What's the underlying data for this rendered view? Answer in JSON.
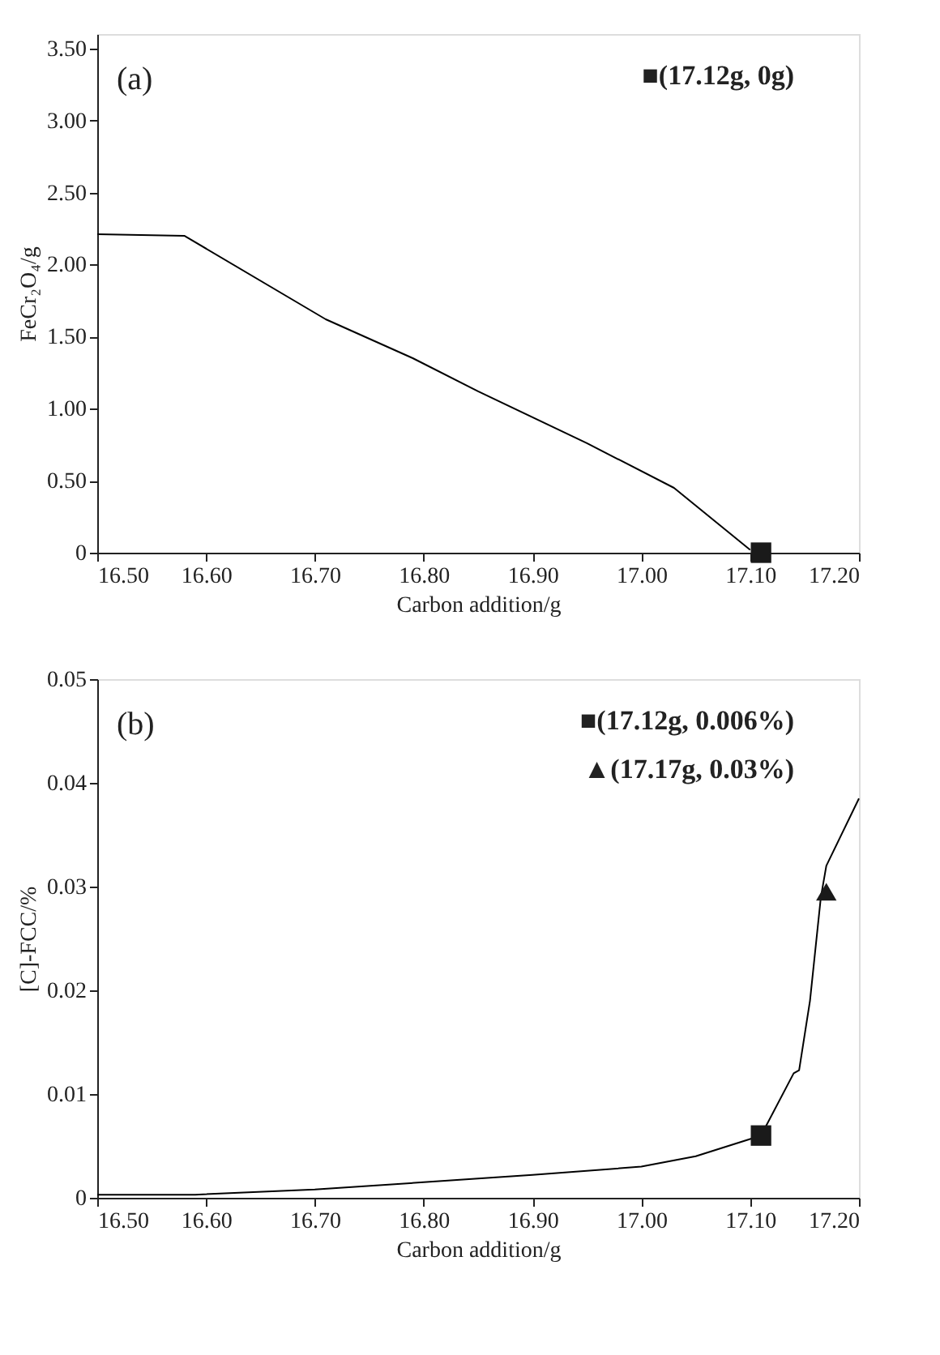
{
  "chart_data": [
    {
      "type": "line",
      "xlabel": "Carbon addition/g",
      "ylabel": "FeCr₂O₄/g",
      "xlim": [
        16.5,
        17.2
      ],
      "xticks": [
        {
          "value": 16.5,
          "label": "16.50"
        },
        {
          "value": 16.6,
          "label": "16.60"
        },
        {
          "value": 16.7,
          "label": "16.70"
        },
        {
          "value": 16.8,
          "label": "16.80"
        },
        {
          "value": 16.9,
          "label": "16.90"
        },
        {
          "value": 17.0,
          "label": "17.00"
        },
        {
          "value": 17.1,
          "label": "17.10"
        },
        {
          "value": 17.2,
          "label": "17.20"
        }
      ],
      "ylim": [
        0,
        3.6
      ],
      "yticks": [
        0,
        {
          "value": 0.5,
          "label": "0.50"
        },
        {
          "value": 1.0,
          "label": "1.00"
        },
        {
          "value": 1.5,
          "label": "1.50"
        },
        {
          "value": 2.0,
          "label": "2.00"
        },
        {
          "value": 2.5,
          "label": "2.50"
        },
        {
          "value": 3.0,
          "label": "3.00"
        },
        {
          "value": 3.5,
          "label": "3.50"
        }
      ],
      "grid": false,
      "annotations": [
        "(a)",
        "■(17.12g, 0g)"
      ],
      "series": [
        {
          "color": "#000000",
          "marker": "none",
          "x": [
            16.5,
            16.58,
            16.71,
            16.79,
            16.85,
            16.95,
            17.03,
            17.1
          ],
          "values": [
            2.21,
            2.2,
            1.62,
            1.35,
            1.12,
            0.76,
            0.45,
            0.02
          ]
        },
        {
          "type": "scatter",
          "color": "#1a1a1a",
          "marker": "square",
          "x": [
            17.11
          ],
          "values": [
            0
          ]
        }
      ]
    },
    {
      "type": "line",
      "xlabel": "Carbon addition/g",
      "ylabel": "[C]-FCC/%",
      "xlim": [
        16.5,
        17.2
      ],
      "xticks": [
        {
          "value": 16.5,
          "label": "16.50"
        },
        {
          "value": 16.6,
          "label": "16.60"
        },
        {
          "value": 16.7,
          "label": "16.70"
        },
        {
          "value": 16.8,
          "label": "16.80"
        },
        {
          "value": 16.9,
          "label": "16.90"
        },
        {
          "value": 17.0,
          "label": "17.00"
        },
        {
          "value": 17.1,
          "label": "17.10"
        },
        {
          "value": 17.2,
          "label": "17.20"
        }
      ],
      "ylim": [
        0,
        0.05
      ],
      "yticks": [
        0,
        0.01,
        0.02,
        0.03,
        0.04,
        0.05
      ],
      "grid": false,
      "annotations": [
        "(b)",
        "■(17.12g, 0.006%)",
        "▲(17.17g, 0.03%)"
      ],
      "series": [
        {
          "color": "#000000",
          "marker": "none",
          "x": [
            16.5,
            16.59,
            16.7,
            16.8,
            16.9,
            17.0,
            17.05,
            17.11,
            17.14,
            17.145,
            17.155,
            17.165,
            17.17,
            17.2
          ],
          "values": [
            0.0003,
            0.0003,
            0.0008,
            0.0015,
            0.0022,
            0.003,
            0.004,
            0.006,
            0.012,
            0.0123,
            0.019,
            0.029,
            0.032,
            0.0385
          ]
        },
        {
          "type": "scatter",
          "color": "#1a1a1a",
          "marker": "square",
          "x": [
            17.11
          ],
          "values": [
            0.006
          ]
        },
        {
          "type": "scatter",
          "color": "#1a1a1a",
          "marker": "triangle",
          "x": [
            17.17
          ],
          "values": [
            0.0295
          ]
        }
      ]
    }
  ]
}
